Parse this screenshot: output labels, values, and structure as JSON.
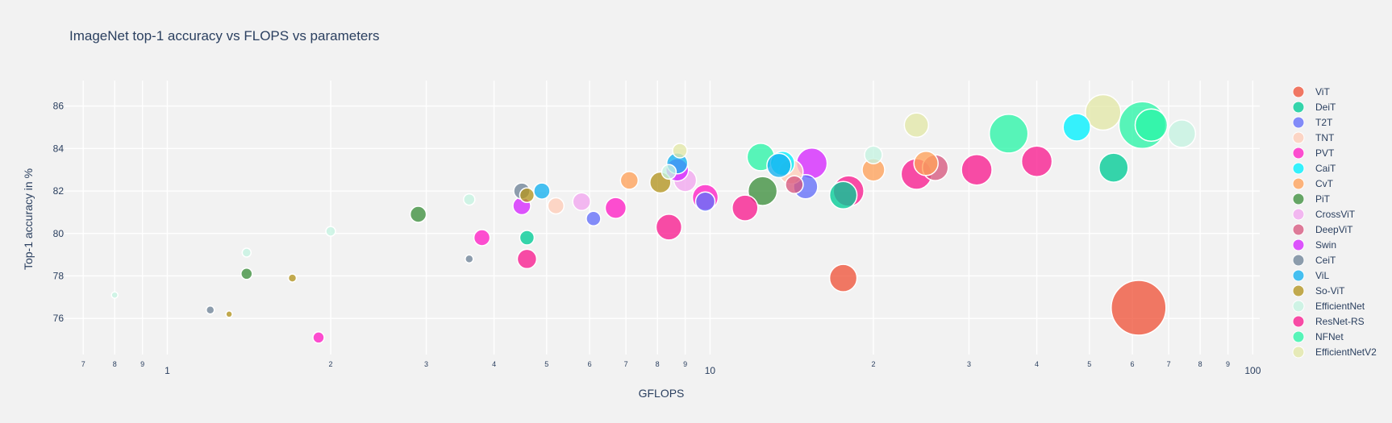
{
  "chart_data": {
    "type": "scatter",
    "title": "ImageNet top-1 accuracy vs FLOPS vs parameters",
    "xlabel": "GFLOPS",
    "ylabel": "Top-1 accuracy in %",
    "xscale": "log",
    "xlim": [
      0.66,
      103
    ],
    "ylim": [
      74.3,
      87.2
    ],
    "x_major_ticks": [
      {
        "v": 1,
        "label": "1"
      },
      {
        "v": 10,
        "label": "10"
      },
      {
        "v": 100,
        "label": "100"
      }
    ],
    "x_minor_ticks": [
      {
        "v": 0.7,
        "label": "7"
      },
      {
        "v": 0.8,
        "label": "8"
      },
      {
        "v": 0.9,
        "label": "9"
      },
      {
        "v": 2,
        "label": "2"
      },
      {
        "v": 3,
        "label": "3"
      },
      {
        "v": 4,
        "label": "4"
      },
      {
        "v": 5,
        "label": "5"
      },
      {
        "v": 6,
        "label": "6"
      },
      {
        "v": 7,
        "label": "7"
      },
      {
        "v": 8,
        "label": "8"
      },
      {
        "v": 9,
        "label": "9"
      },
      {
        "v": 20,
        "label": "2"
      },
      {
        "v": 30,
        "label": "3"
      },
      {
        "v": 40,
        "label": "4"
      },
      {
        "v": 50,
        "label": "5"
      },
      {
        "v": 60,
        "label": "6"
      },
      {
        "v": 70,
        "label": "7"
      },
      {
        "v": 80,
        "label": "8"
      },
      {
        "v": 90,
        "label": "9"
      }
    ],
    "y_ticks": [
      76,
      78,
      80,
      82,
      84,
      86
    ],
    "grid": true,
    "legend_position": "right",
    "bubble_size": "parameters (relative diameter)",
    "series": [
      {
        "name": "ViT",
        "color": "#ef553b",
        "points": [
          [
            17.6,
            77.9,
            34
          ],
          [
            61.6,
            76.5,
            68
          ]
        ]
      },
      {
        "name": "DeiT",
        "color": "#00cc96",
        "points": [
          [
            4.6,
            79.8,
            18
          ],
          [
            17.6,
            81.8,
            34
          ],
          [
            55.4,
            83.1,
            36
          ]
        ]
      },
      {
        "name": "T2T",
        "color": "#636efa",
        "points": [
          [
            6.1,
            80.7,
            18
          ],
          [
            9.8,
            81.5,
            24
          ],
          [
            15.0,
            82.2,
            30
          ]
        ]
      },
      {
        "name": "TNT",
        "color": "#ffcdb8",
        "points": [
          [
            5.2,
            81.3,
            20
          ],
          [
            14.1,
            82.9,
            30
          ]
        ]
      },
      {
        "name": "PVT",
        "color": "#ff1fc5",
        "points": [
          [
            1.9,
            75.1,
            14
          ],
          [
            3.8,
            79.8,
            20
          ],
          [
            6.7,
            81.2,
            26
          ],
          [
            9.8,
            81.7,
            32
          ]
        ]
      },
      {
        "name": "CaiT",
        "color": "#00f1ff",
        "points": [
          [
            13.6,
            83.3,
            30
          ],
          [
            47.4,
            85.0,
            34
          ]
        ]
      },
      {
        "name": "CvT",
        "color": "#ffa15a",
        "points": [
          [
            7.1,
            82.5,
            22
          ],
          [
            20.0,
            83.0,
            28
          ],
          [
            25.0,
            83.3,
            30
          ]
        ]
      },
      {
        "name": "PiT",
        "color": "#3d8f3d",
        "points": [
          [
            1.4,
            78.1,
            14
          ],
          [
            2.9,
            80.9,
            20
          ],
          [
            12.5,
            82.0,
            36
          ]
        ]
      },
      {
        "name": "CrossViT",
        "color": "#f2a6f0",
        "points": [
          [
            5.8,
            81.5,
            22
          ],
          [
            9.0,
            82.5,
            28
          ]
        ]
      },
      {
        "name": "DeepViT",
        "color": "#d7587f",
        "points": [
          [
            14.3,
            82.3,
            22
          ],
          [
            26.0,
            83.1,
            32
          ]
        ]
      },
      {
        "name": "Swin",
        "color": "#d626ff",
        "points": [
          [
            4.5,
            81.3,
            22
          ],
          [
            8.7,
            83.0,
            28
          ],
          [
            15.4,
            83.3,
            38
          ]
        ]
      },
      {
        "name": "CeiT",
        "color": "#6f8499",
        "points": [
          [
            1.2,
            76.4,
            10
          ],
          [
            3.6,
            78.8,
            10
          ],
          [
            4.5,
            82.0,
            20
          ]
        ]
      },
      {
        "name": "ViL",
        "color": "#14b1f0",
        "points": [
          [
            4.9,
            82.0,
            20
          ],
          [
            8.7,
            83.3,
            26
          ],
          [
            13.4,
            83.2,
            30
          ]
        ]
      },
      {
        "name": "So-ViT",
        "color": "#b39520",
        "points": [
          [
            1.3,
            76.2,
            8
          ],
          [
            1.7,
            77.9,
            10
          ],
          [
            4.6,
            81.8,
            18
          ],
          [
            8.1,
            82.4,
            26
          ]
        ]
      },
      {
        "name": "EfficientNet",
        "color": "#c5f4e2",
        "points": [
          [
            0.8,
            77.1,
            8
          ],
          [
            1.4,
            79.1,
            11
          ],
          [
            2.0,
            80.1,
            12
          ],
          [
            3.6,
            81.6,
            14
          ],
          [
            8.4,
            82.9,
            18
          ],
          [
            20.0,
            83.7,
            22
          ],
          [
            74.0,
            84.7,
            34
          ]
        ]
      },
      {
        "name": "ResNet-RS",
        "color": "#f91c8f",
        "points": [
          [
            4.6,
            78.8,
            24
          ],
          [
            8.4,
            80.3,
            32
          ],
          [
            11.6,
            81.2,
            32
          ],
          [
            18.0,
            82.0,
            38
          ],
          [
            24.0,
            82.8,
            38
          ],
          [
            31.0,
            83.0,
            38
          ],
          [
            40.0,
            83.4,
            38
          ]
        ]
      },
      {
        "name": "NFNet",
        "color": "#2bf5a8",
        "points": [
          [
            12.4,
            83.6,
            34
          ],
          [
            35.5,
            84.7,
            48
          ],
          [
            62.6,
            85.1,
            58
          ],
          [
            65.0,
            85.1,
            40
          ]
        ]
      },
      {
        "name": "EfficientNetV2",
        "color": "#e3e8a8",
        "points": [
          [
            8.8,
            83.9,
            18
          ],
          [
            24.0,
            85.1,
            30
          ],
          [
            53.0,
            85.7,
            44
          ]
        ]
      }
    ]
  }
}
